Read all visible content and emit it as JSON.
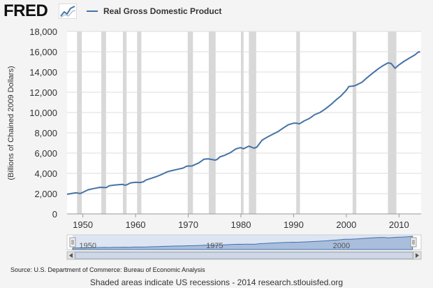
{
  "logo": {
    "text": "FRED",
    "icon": "fred-chart-icon"
  },
  "footer": {
    "source": "Source: U.S. Department of Commerce: Bureau of Economic Analysis",
    "note": "Shaded areas indicate US recessions - 2014 research.stlouisfed.org"
  },
  "navigator": {
    "labels": [
      "1950",
      "1975",
      "2000"
    ]
  },
  "colors": {
    "series": "#4572a7",
    "recession": "#d8d8d8",
    "navigator_fill": "#c6d4ea"
  },
  "chart_data": {
    "type": "line",
    "title": "",
    "xlabel": "",
    "ylabel": "(Billions of Chained 2009 Dollars)",
    "xlim": [
      1947,
      2014.2
    ],
    "ylim": [
      0,
      18000
    ],
    "yticks": [
      0,
      2000,
      4000,
      6000,
      8000,
      10000,
      12000,
      14000,
      16000,
      18000
    ],
    "ytick_labels": [
      "0",
      "2,000",
      "4,000",
      "6,000",
      "8,000",
      "10,000",
      "12,000",
      "14,000",
      "16,000",
      "18,000"
    ],
    "xticks": [
      1950,
      1960,
      1970,
      1980,
      1990,
      2000,
      2010
    ],
    "xtick_labels": [
      "1950",
      "1960",
      "1970",
      "1980",
      "1990",
      "2000",
      "2010"
    ],
    "legend": "top-left",
    "grid": true,
    "recessions": [
      [
        1948.9,
        1949.8
      ],
      [
        1953.5,
        1954.4
      ],
      [
        1957.6,
        1958.3
      ],
      [
        1960.3,
        1961.1
      ],
      [
        1969.9,
        1970.9
      ],
      [
        1973.9,
        1975.2
      ],
      [
        1980.0,
        1980.5
      ],
      [
        1981.5,
        1982.9
      ],
      [
        1990.5,
        1991.2
      ],
      [
        2001.2,
        2001.9
      ],
      [
        2007.9,
        2009.5
      ]
    ],
    "series": [
      {
        "name": "Real Gross Domestic Product",
        "x": [
          1947,
          1948,
          1948.75,
          1949.5,
          1950,
          1951,
          1952,
          1953.25,
          1953.9,
          1954.5,
          1955,
          1956,
          1957.5,
          1958.1,
          1958.5,
          1959,
          1960,
          1960.9,
          1961.5,
          1962,
          1963,
          1964,
          1965,
          1966,
          1967,
          1968,
          1969,
          1969.75,
          1970.75,
          1971,
          1972,
          1973,
          1973.75,
          1974.5,
          1975.1,
          1975.5,
          1976,
          1977,
          1978,
          1979,
          1979.9,
          1980.5,
          1981,
          1981.5,
          1982.5,
          1983,
          1984,
          1985,
          1986,
          1987,
          1988,
          1989,
          1990,
          1990.5,
          1991.1,
          1992,
          1993,
          1994,
          1995,
          1996,
          1997,
          1998,
          1999,
          2000,
          2000.5,
          2001.5,
          2002,
          2003,
          2004,
          2005,
          2006,
          2007,
          2007.9,
          2008.5,
          2009.25,
          2010,
          2011,
          2012,
          2013,
          2013.75,
          2014
        ],
        "y": [
          1940,
          2030,
          2080,
          2010,
          2130,
          2380,
          2500,
          2620,
          2600,
          2610,
          2780,
          2840,
          2910,
          2830,
          2910,
          3050,
          3120,
          3100,
          3170,
          3350,
          3510,
          3690,
          3900,
          4150,
          4280,
          4400,
          4520,
          4720,
          4730,
          4800,
          5030,
          5400,
          5430,
          5370,
          5300,
          5380,
          5620,
          5800,
          6050,
          6400,
          6540,
          6430,
          6560,
          6680,
          6480,
          6580,
          7270,
          7580,
          7850,
          8110,
          8460,
          8800,
          8950,
          8960,
          8880,
          9170,
          9420,
          9790,
          10000,
          10350,
          10750,
          11230,
          11650,
          12200,
          12570,
          12630,
          12740,
          13000,
          13460,
          13880,
          14290,
          14640,
          14900,
          14850,
          14370,
          14700,
          15070,
          15380,
          15680,
          16000,
          15950
        ]
      }
    ]
  }
}
